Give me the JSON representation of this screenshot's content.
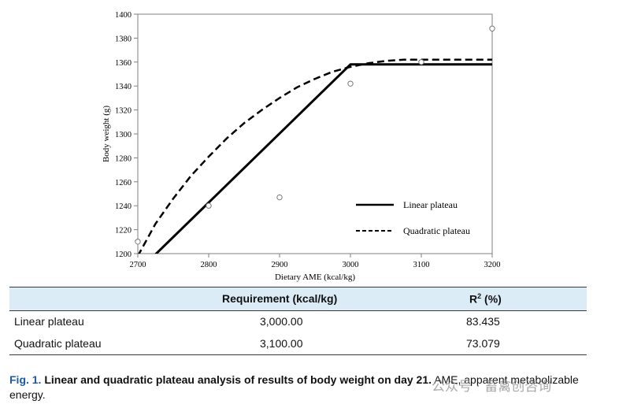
{
  "chart_data": {
    "type": "line",
    "xlabel": "Dietary AME (kcal/kg)",
    "ylabel": "Body weight (g)",
    "xlim": [
      2700,
      3200
    ],
    "ylim": [
      1200,
      1400
    ],
    "x_ticks": [
      "2700",
      "2800",
      "2900",
      "3000",
      "3100",
      "3200"
    ],
    "y_ticks": [
      "1200",
      "1220",
      "1240",
      "1260",
      "1280",
      "1300",
      "1320",
      "1340",
      "1360",
      "1380",
      "1400"
    ],
    "grid": false,
    "legend_position": "lower-right inside",
    "observed_points": [
      {
        "x": 2700,
        "y": 1210
      },
      {
        "x": 2800,
        "y": 1240
      },
      {
        "x": 2900,
        "y": 1247
      },
      {
        "x": 3000,
        "y": 1342
      },
      {
        "x": 3100,
        "y": 1360
      },
      {
        "x": 3200,
        "y": 1388
      }
    ],
    "series": [
      {
        "name": "Linear plateau",
        "style": "solid",
        "x": [
          2700,
          3000,
          3200
        ],
        "y": [
          1185,
          1358,
          1358
        ]
      },
      {
        "name": "Quadratic plateau",
        "style": "dashed",
        "x": [
          2700,
          2725,
          2750,
          2775,
          2800,
          2825,
          2850,
          2875,
          2900,
          2925,
          2950,
          2975,
          3000,
          3025,
          3050,
          3075,
          3100,
          3200
        ],
        "y": [
          1198,
          1225,
          1246,
          1265,
          1281,
          1296,
          1309,
          1320,
          1330,
          1339,
          1346,
          1352,
          1356,
          1359,
          1361,
          1362,
          1362,
          1362
        ]
      }
    ]
  },
  "table": {
    "headers": [
      "",
      "Requirement (kcal/kg)",
      "R",
      "2",
      " (%)"
    ],
    "rows": [
      {
        "label": "Linear plateau",
        "requirement": "3,000.00",
        "r2": "83.435"
      },
      {
        "label": "Quadratic plateau",
        "requirement": "3,100.00",
        "r2": "73.079"
      }
    ]
  },
  "caption": {
    "fig": "Fig. 1.",
    "bold_text": " Linear and quadratic plateau analysis of results of body weight on day 21.",
    "rest": " AME, apparent metabolizable energy."
  },
  "watermark": "公众号 · 畜禽创咨询"
}
